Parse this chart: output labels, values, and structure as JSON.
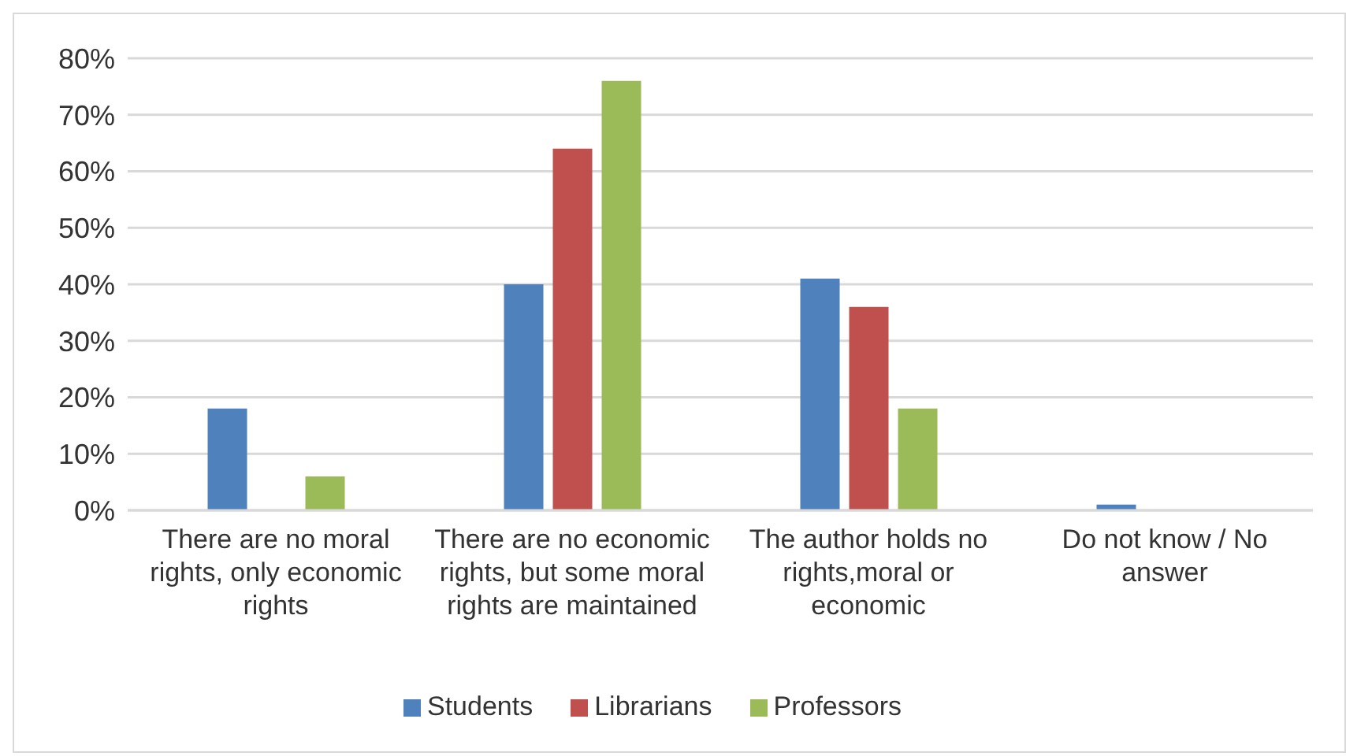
{
  "chart_data": {
    "type": "bar",
    "categories": [
      "There are no moral rights, only economic rights",
      "There are no economic rights, but some moral rights are maintained",
      "The author holds no rights,moral or economic",
      "Do not know / No answer"
    ],
    "series": [
      {
        "name": "Students",
        "color": "#4f81bd",
        "values": [
          18,
          40,
          41,
          1
        ]
      },
      {
        "name": "Librarians",
        "color": "#c0504d",
        "values": [
          0,
          64,
          36,
          0
        ]
      },
      {
        "name": "Professors",
        "color": "#9bbb59",
        "values": [
          6,
          76,
          18,
          0
        ]
      }
    ],
    "ylim": [
      0,
      80
    ],
    "yticks": [
      {
        "value": 0,
        "label": "0%"
      },
      {
        "value": 10,
        "label": "10%"
      },
      {
        "value": 20,
        "label": "20%"
      },
      {
        "value": 30,
        "label": "30%"
      },
      {
        "value": 40,
        "label": "40%"
      },
      {
        "value": 50,
        "label": "50%"
      },
      {
        "value": 60,
        "label": "60%"
      },
      {
        "value": 70,
        "label": "70%"
      },
      {
        "value": 80,
        "label": "80%"
      }
    ],
    "grid": "y",
    "legend": "bottom"
  }
}
